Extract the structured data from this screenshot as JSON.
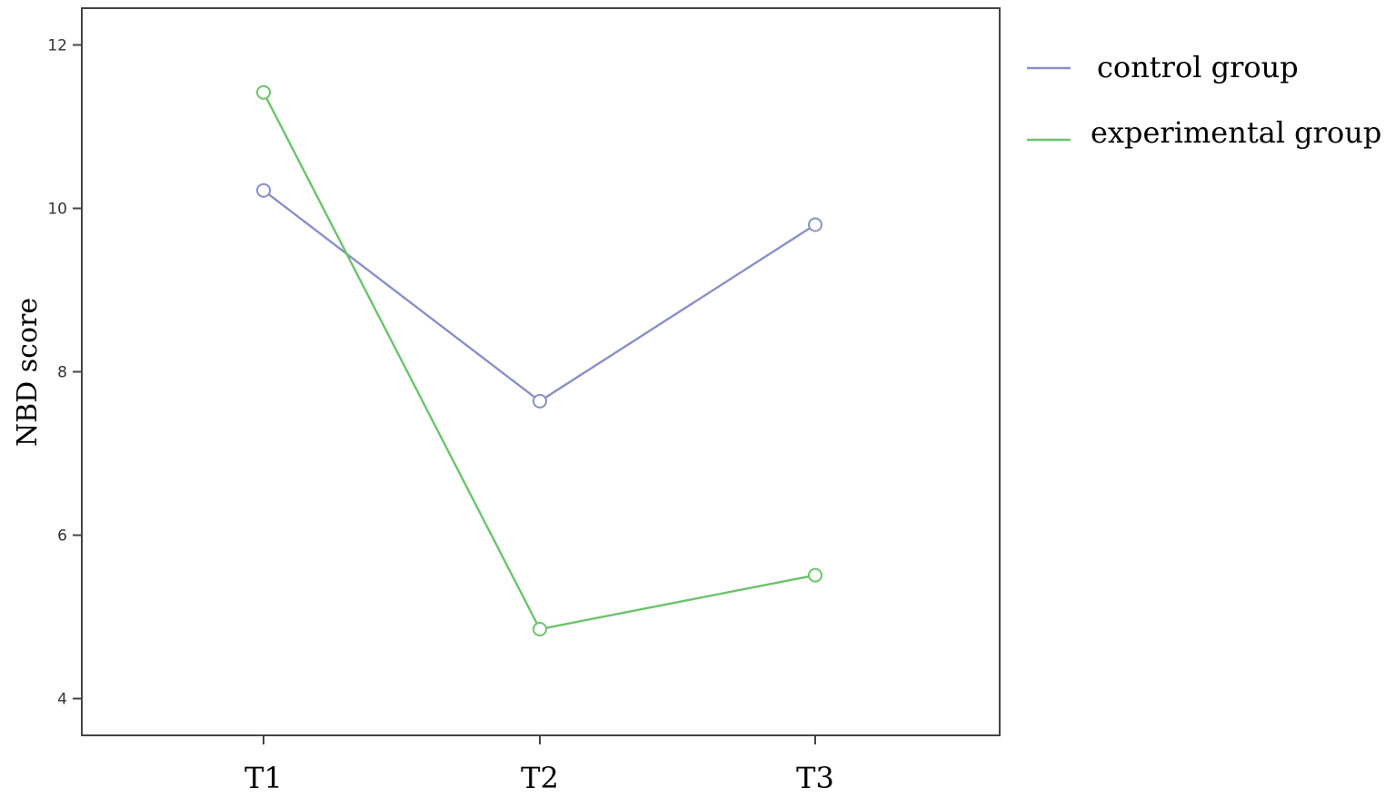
{
  "chart_data": {
    "type": "line",
    "categories": [
      "T1",
      "T2",
      "T3"
    ],
    "series": [
      {
        "name": "control group",
        "values": [
          10.22,
          7.64,
          9.8
        ],
        "color": "#8a8fc6"
      },
      {
        "name": "experimental group",
        "values": [
          11.42,
          4.85,
          5.51
        ],
        "color": "#6cc36c"
      }
    ],
    "ylabel": "NBD score",
    "xlabel": "",
    "ylim": [
      3.55,
      12.45
    ],
    "yticks": [
      4,
      6,
      8,
      10,
      12
    ],
    "ytick_labels": [
      "4",
      "6",
      "8",
      "10",
      "12"
    ],
    "marker": "open-circle",
    "grid": false,
    "legend_position": "top-right-outside"
  }
}
